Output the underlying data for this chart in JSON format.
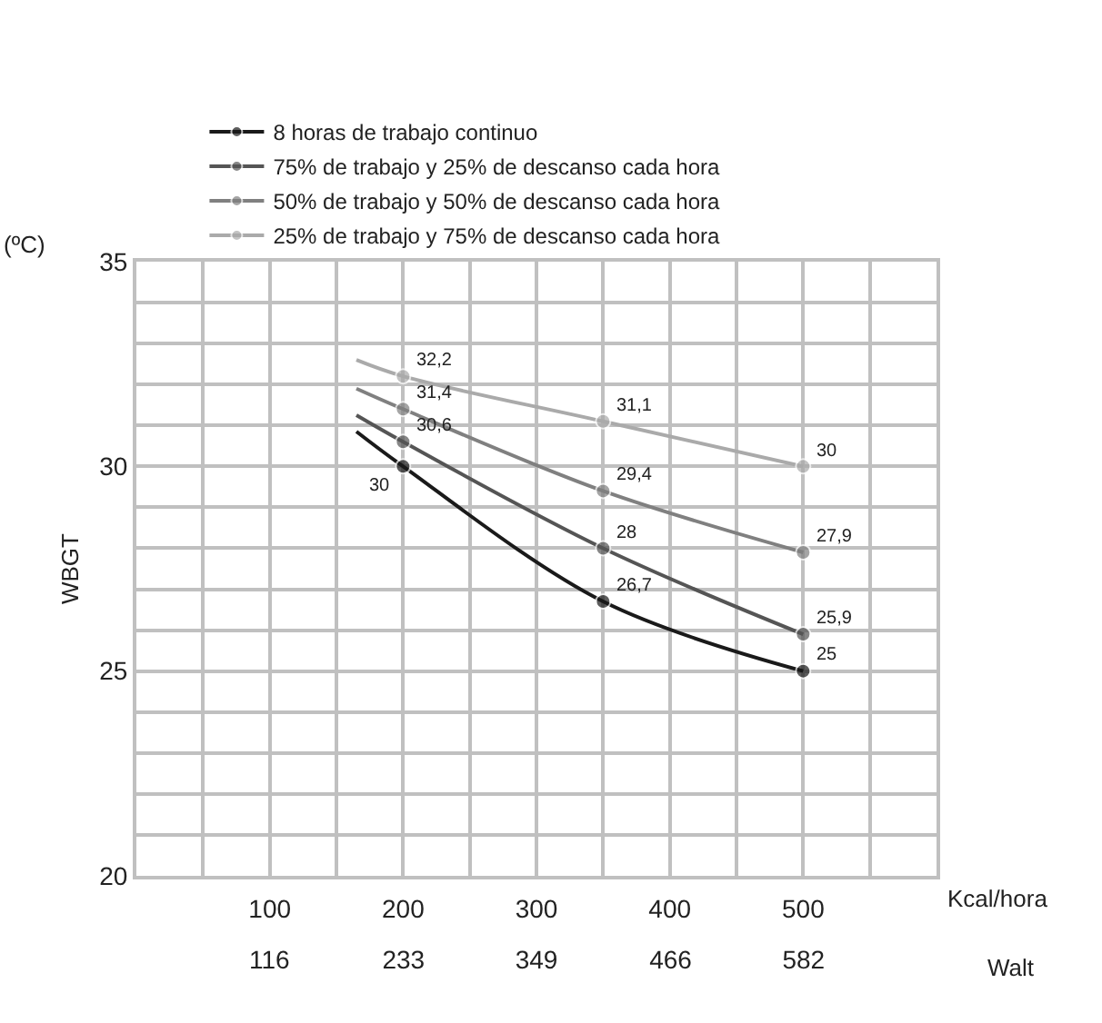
{
  "chart_data": {
    "type": "line",
    "ylabel": "WBGT",
    "xlabel": "Kcal/hora",
    "x2label": "Walt",
    "annotations": [
      "(ºC)"
    ],
    "xlim": [
      0,
      600
    ],
    "xticks": [
      {
        "value": 0,
        "label": null
      },
      {
        "value": 50,
        "label": null
      },
      100,
      {
        "value": 150,
        "label": null
      },
      200,
      {
        "value": 250,
        "label": null
      },
      300,
      {
        "value": 350,
        "label": null
      },
      400,
      {
        "value": 450,
        "label": null
      },
      500,
      {
        "value": 550,
        "label": null
      },
      {
        "value": 600,
        "label": null
      }
    ],
    "x2lim": [
      0,
      698
    ],
    "x2ticks": [
      116,
      233,
      349,
      466,
      582
    ],
    "ylim": [
      20,
      35
    ],
    "yticks": [
      20,
      {
        "value": 21,
        "label": null
      },
      {
        "value": 22,
        "label": null
      },
      {
        "value": 23,
        "label": null
      },
      {
        "value": 24,
        "label": null
      },
      25,
      {
        "value": 26,
        "label": null
      },
      {
        "value": 27,
        "label": null
      },
      {
        "value": 28,
        "label": null
      },
      {
        "value": 29,
        "label": null
      },
      30,
      {
        "value": 31,
        "label": null
      },
      {
        "value": 32,
        "label": null
      },
      {
        "value": 33,
        "label": null
      },
      {
        "value": 34,
        "label": null
      },
      35
    ],
    "grid": true,
    "legend": "top",
    "marker": "circle",
    "line_style": "solid",
    "series": [
      {
        "name": "8 horas de trabajo continuo",
        "color": "#1a1a1a",
        "x": [
          165,
          200,
          350,
          500
        ],
        "values": [
          30.85,
          30,
          26.7,
          25
        ],
        "value_labels": [
          null,
          "30",
          "26,7",
          "25"
        ]
      },
      {
        "name": "75% de trabajo y 25% de descanso cada hora",
        "color": "#555555",
        "x": [
          165,
          200,
          350,
          500
        ],
        "values": [
          31.25,
          30.6,
          28,
          25.9
        ],
        "value_labels": [
          null,
          "30,6",
          "28",
          "25,9"
        ]
      },
      {
        "name": "50% de trabajo y 50% de descanso cada hora",
        "color": "#808080",
        "x": [
          165,
          200,
          350,
          500
        ],
        "values": [
          31.9,
          31.4,
          29.4,
          27.9
        ],
        "value_labels": [
          null,
          "31,4",
          "29,4",
          "27,9"
        ]
      },
      {
        "name": "25% de trabajo y 75% de descanso cada hora",
        "color": "#aaaaaa",
        "x": [
          165,
          200,
          350,
          500
        ],
        "values": [
          32.6,
          32.2,
          31.1,
          30
        ],
        "value_labels": [
          null,
          "32,2",
          "31,1",
          "30"
        ]
      }
    ]
  }
}
